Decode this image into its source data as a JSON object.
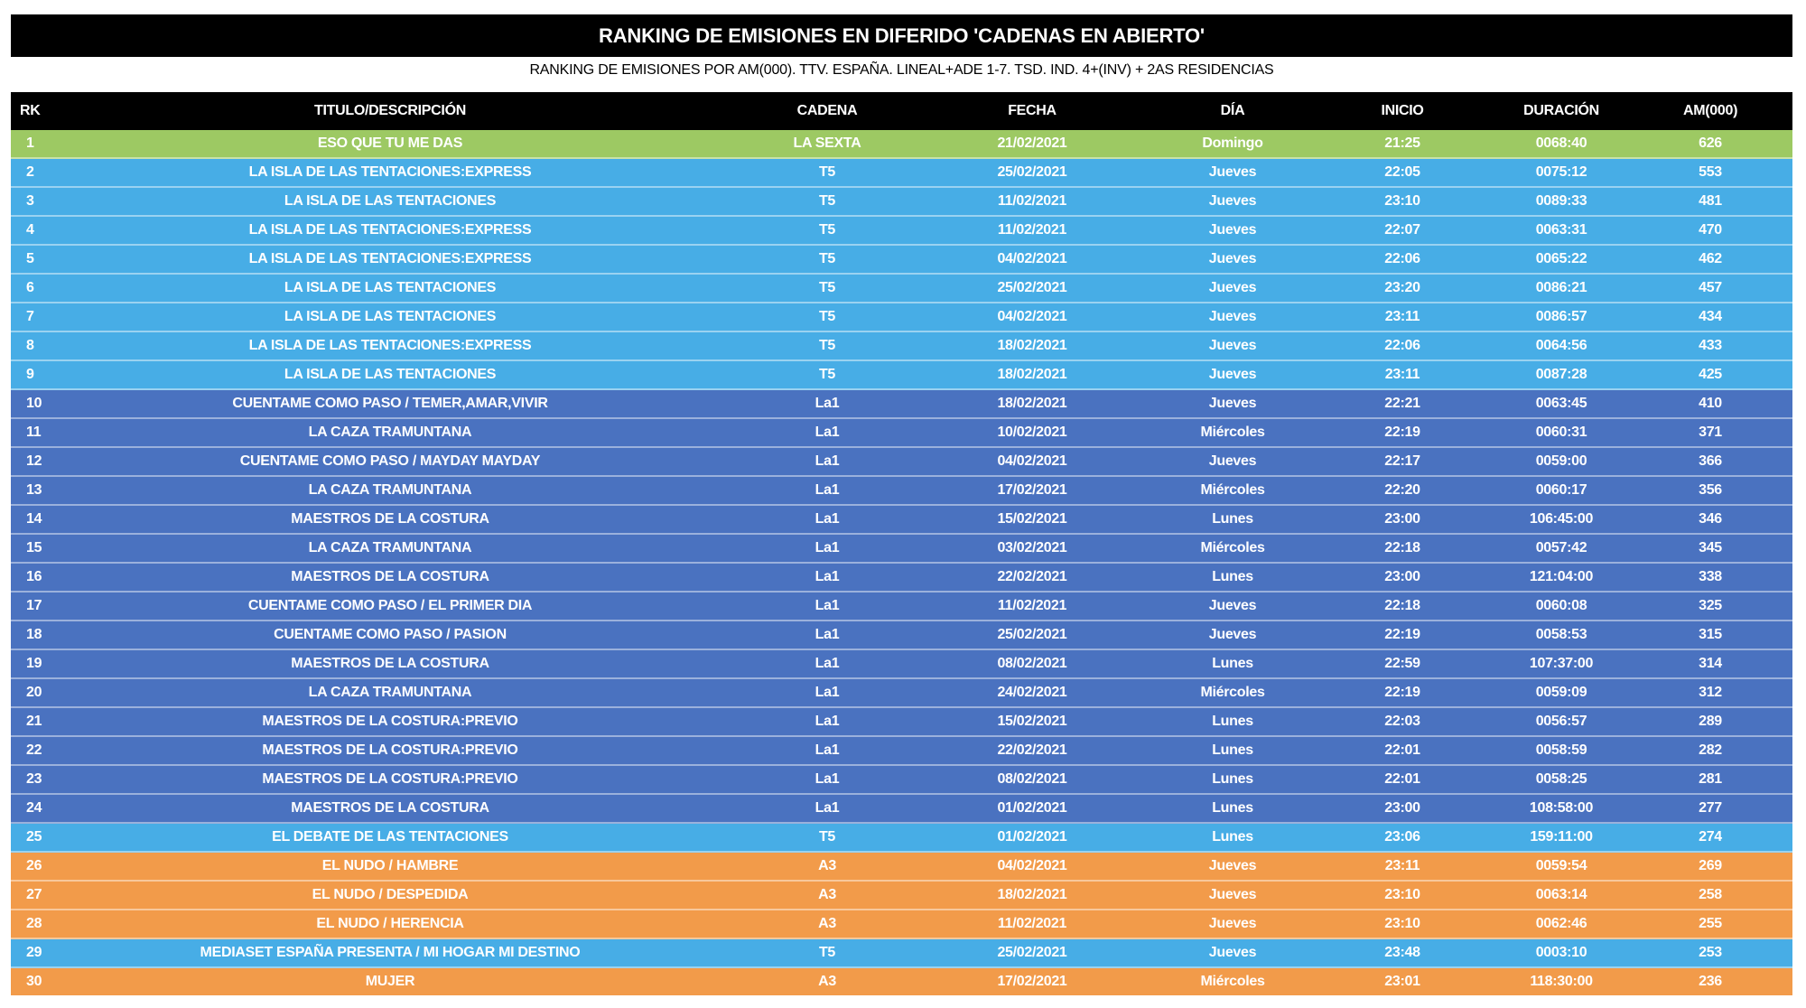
{
  "title": "RANKING DE EMISIONES EN DIFERIDO 'CADENAS EN ABIERTO'",
  "subtitle": "RANKING DE EMISIONES POR AM(000). TTV. ESPAÑA. LINEAL+ADE 1-7. TSD. IND. 4+(INV) + 2AS RESIDENCIAS",
  "columns": {
    "rk": "RK",
    "titulo": "TITULO/DESCRIPCIÓN",
    "cadena": "CADENA",
    "fecha": "FECHA",
    "dia": "DÍA",
    "inicio": "INICIO",
    "duracion": "DURACIÓN",
    "am": "AM(000)"
  },
  "channel_colors": {
    "LA SEXTA": "#9DC963",
    "T5": "#47ADE6",
    "La1": "#4A72C0",
    "A3": "#F29B4A"
  },
  "rows": [
    {
      "rk": "1",
      "titulo": "ESO QUE TU ME DAS",
      "cadena": "LA SEXTA",
      "fecha": "21/02/2021",
      "dia": "Domingo",
      "inicio": "21:25",
      "duracion": "0068:40",
      "am": "626"
    },
    {
      "rk": "2",
      "titulo": "LA ISLA DE LAS TENTACIONES:EXPRESS",
      "cadena": "T5",
      "fecha": "25/02/2021",
      "dia": "Jueves",
      "inicio": "22:05",
      "duracion": "0075:12",
      "am": "553"
    },
    {
      "rk": "3",
      "titulo": "LA ISLA DE LAS TENTACIONES",
      "cadena": "T5",
      "fecha": "11/02/2021",
      "dia": "Jueves",
      "inicio": "23:10",
      "duracion": "0089:33",
      "am": "481"
    },
    {
      "rk": "4",
      "titulo": "LA ISLA DE LAS TENTACIONES:EXPRESS",
      "cadena": "T5",
      "fecha": "11/02/2021",
      "dia": "Jueves",
      "inicio": "22:07",
      "duracion": "0063:31",
      "am": "470"
    },
    {
      "rk": "5",
      "titulo": "LA ISLA DE LAS TENTACIONES:EXPRESS",
      "cadena": "T5",
      "fecha": "04/02/2021",
      "dia": "Jueves",
      "inicio": "22:06",
      "duracion": "0065:22",
      "am": "462"
    },
    {
      "rk": "6",
      "titulo": "LA ISLA DE LAS TENTACIONES",
      "cadena": "T5",
      "fecha": "25/02/2021",
      "dia": "Jueves",
      "inicio": "23:20",
      "duracion": "0086:21",
      "am": "457"
    },
    {
      "rk": "7",
      "titulo": "LA ISLA DE LAS TENTACIONES",
      "cadena": "T5",
      "fecha": "04/02/2021",
      "dia": "Jueves",
      "inicio": "23:11",
      "duracion": "0086:57",
      "am": "434"
    },
    {
      "rk": "8",
      "titulo": "LA ISLA DE LAS TENTACIONES:EXPRESS",
      "cadena": "T5",
      "fecha": "18/02/2021",
      "dia": "Jueves",
      "inicio": "22:06",
      "duracion": "0064:56",
      "am": "433"
    },
    {
      "rk": "9",
      "titulo": "LA ISLA DE LAS TENTACIONES",
      "cadena": "T5",
      "fecha": "18/02/2021",
      "dia": "Jueves",
      "inicio": "23:11",
      "duracion": "0087:28",
      "am": "425"
    },
    {
      "rk": "10",
      "titulo": "CUENTAME COMO PASO / TEMER,AMAR,VIVIR",
      "cadena": "La1",
      "fecha": "18/02/2021",
      "dia": "Jueves",
      "inicio": "22:21",
      "duracion": "0063:45",
      "am": "410"
    },
    {
      "rk": "11",
      "titulo": "LA CAZA TRAMUNTANA",
      "cadena": "La1",
      "fecha": "10/02/2021",
      "dia": "Miércoles",
      "inicio": "22:19",
      "duracion": "0060:31",
      "am": "371"
    },
    {
      "rk": "12",
      "titulo": "CUENTAME COMO PASO / MAYDAY MAYDAY",
      "cadena": "La1",
      "fecha": "04/02/2021",
      "dia": "Jueves",
      "inicio": "22:17",
      "duracion": "0059:00",
      "am": "366"
    },
    {
      "rk": "13",
      "titulo": "LA CAZA TRAMUNTANA",
      "cadena": "La1",
      "fecha": "17/02/2021",
      "dia": "Miércoles",
      "inicio": "22:20",
      "duracion": "0060:17",
      "am": "356"
    },
    {
      "rk": "14",
      "titulo": "MAESTROS DE LA COSTURA",
      "cadena": "La1",
      "fecha": "15/02/2021",
      "dia": "Lunes",
      "inicio": "23:00",
      "duracion": "106:45:00",
      "am": "346"
    },
    {
      "rk": "15",
      "titulo": "LA CAZA TRAMUNTANA",
      "cadena": "La1",
      "fecha": "03/02/2021",
      "dia": "Miércoles",
      "inicio": "22:18",
      "duracion": "0057:42",
      "am": "345"
    },
    {
      "rk": "16",
      "titulo": "MAESTROS DE LA COSTURA",
      "cadena": "La1",
      "fecha": "22/02/2021",
      "dia": "Lunes",
      "inicio": "23:00",
      "duracion": "121:04:00",
      "am": "338"
    },
    {
      "rk": "17",
      "titulo": "CUENTAME COMO PASO / EL PRIMER DIA",
      "cadena": "La1",
      "fecha": "11/02/2021",
      "dia": "Jueves",
      "inicio": "22:18",
      "duracion": "0060:08",
      "am": "325"
    },
    {
      "rk": "18",
      "titulo": "CUENTAME COMO PASO / PASION",
      "cadena": "La1",
      "fecha": "25/02/2021",
      "dia": "Jueves",
      "inicio": "22:19",
      "duracion": "0058:53",
      "am": "315"
    },
    {
      "rk": "19",
      "titulo": "MAESTROS DE LA COSTURA",
      "cadena": "La1",
      "fecha": "08/02/2021",
      "dia": "Lunes",
      "inicio": "22:59",
      "duracion": "107:37:00",
      "am": "314"
    },
    {
      "rk": "20",
      "titulo": "LA CAZA TRAMUNTANA",
      "cadena": "La1",
      "fecha": "24/02/2021",
      "dia": "Miércoles",
      "inicio": "22:19",
      "duracion": "0059:09",
      "am": "312"
    },
    {
      "rk": "21",
      "titulo": "MAESTROS DE LA COSTURA:PREVIO",
      "cadena": "La1",
      "fecha": "15/02/2021",
      "dia": "Lunes",
      "inicio": "22:03",
      "duracion": "0056:57",
      "am": "289"
    },
    {
      "rk": "22",
      "titulo": "MAESTROS DE LA COSTURA:PREVIO",
      "cadena": "La1",
      "fecha": "22/02/2021",
      "dia": "Lunes",
      "inicio": "22:01",
      "duracion": "0058:59",
      "am": "282"
    },
    {
      "rk": "23",
      "titulo": "MAESTROS DE LA COSTURA:PREVIO",
      "cadena": "La1",
      "fecha": "08/02/2021",
      "dia": "Lunes",
      "inicio": "22:01",
      "duracion": "0058:25",
      "am": "281"
    },
    {
      "rk": "24",
      "titulo": "MAESTROS DE LA COSTURA",
      "cadena": "La1",
      "fecha": "01/02/2021",
      "dia": "Lunes",
      "inicio": "23:00",
      "duracion": "108:58:00",
      "am": "277"
    },
    {
      "rk": "25",
      "titulo": "EL DEBATE DE LAS TENTACIONES",
      "cadena": "T5",
      "fecha": "01/02/2021",
      "dia": "Lunes",
      "inicio": "23:06",
      "duracion": "159:11:00",
      "am": "274"
    },
    {
      "rk": "26",
      "titulo": "EL NUDO / HAMBRE",
      "cadena": "A3",
      "fecha": "04/02/2021",
      "dia": "Jueves",
      "inicio": "23:11",
      "duracion": "0059:54",
      "am": "269"
    },
    {
      "rk": "27",
      "titulo": "EL NUDO / DESPEDIDA",
      "cadena": "A3",
      "fecha": "18/02/2021",
      "dia": "Jueves",
      "inicio": "23:10",
      "duracion": "0063:14",
      "am": "258"
    },
    {
      "rk": "28",
      "titulo": "EL NUDO / HERENCIA",
      "cadena": "A3",
      "fecha": "11/02/2021",
      "dia": "Jueves",
      "inicio": "23:10",
      "duracion": "0062:46",
      "am": "255"
    },
    {
      "rk": "29",
      "titulo": "MEDIASET ESPAÑA PRESENTA / MI HOGAR MI DESTINO",
      "cadena": "T5",
      "fecha": "25/02/2021",
      "dia": "Jueves",
      "inicio": "23:48",
      "duracion": "0003:10",
      "am": "253"
    },
    {
      "rk": "30",
      "titulo": "MUJER",
      "cadena": "A3",
      "fecha": "17/02/2021",
      "dia": "Miércoles",
      "inicio": "23:01",
      "duracion": "118:30:00",
      "am": "236"
    }
  ]
}
